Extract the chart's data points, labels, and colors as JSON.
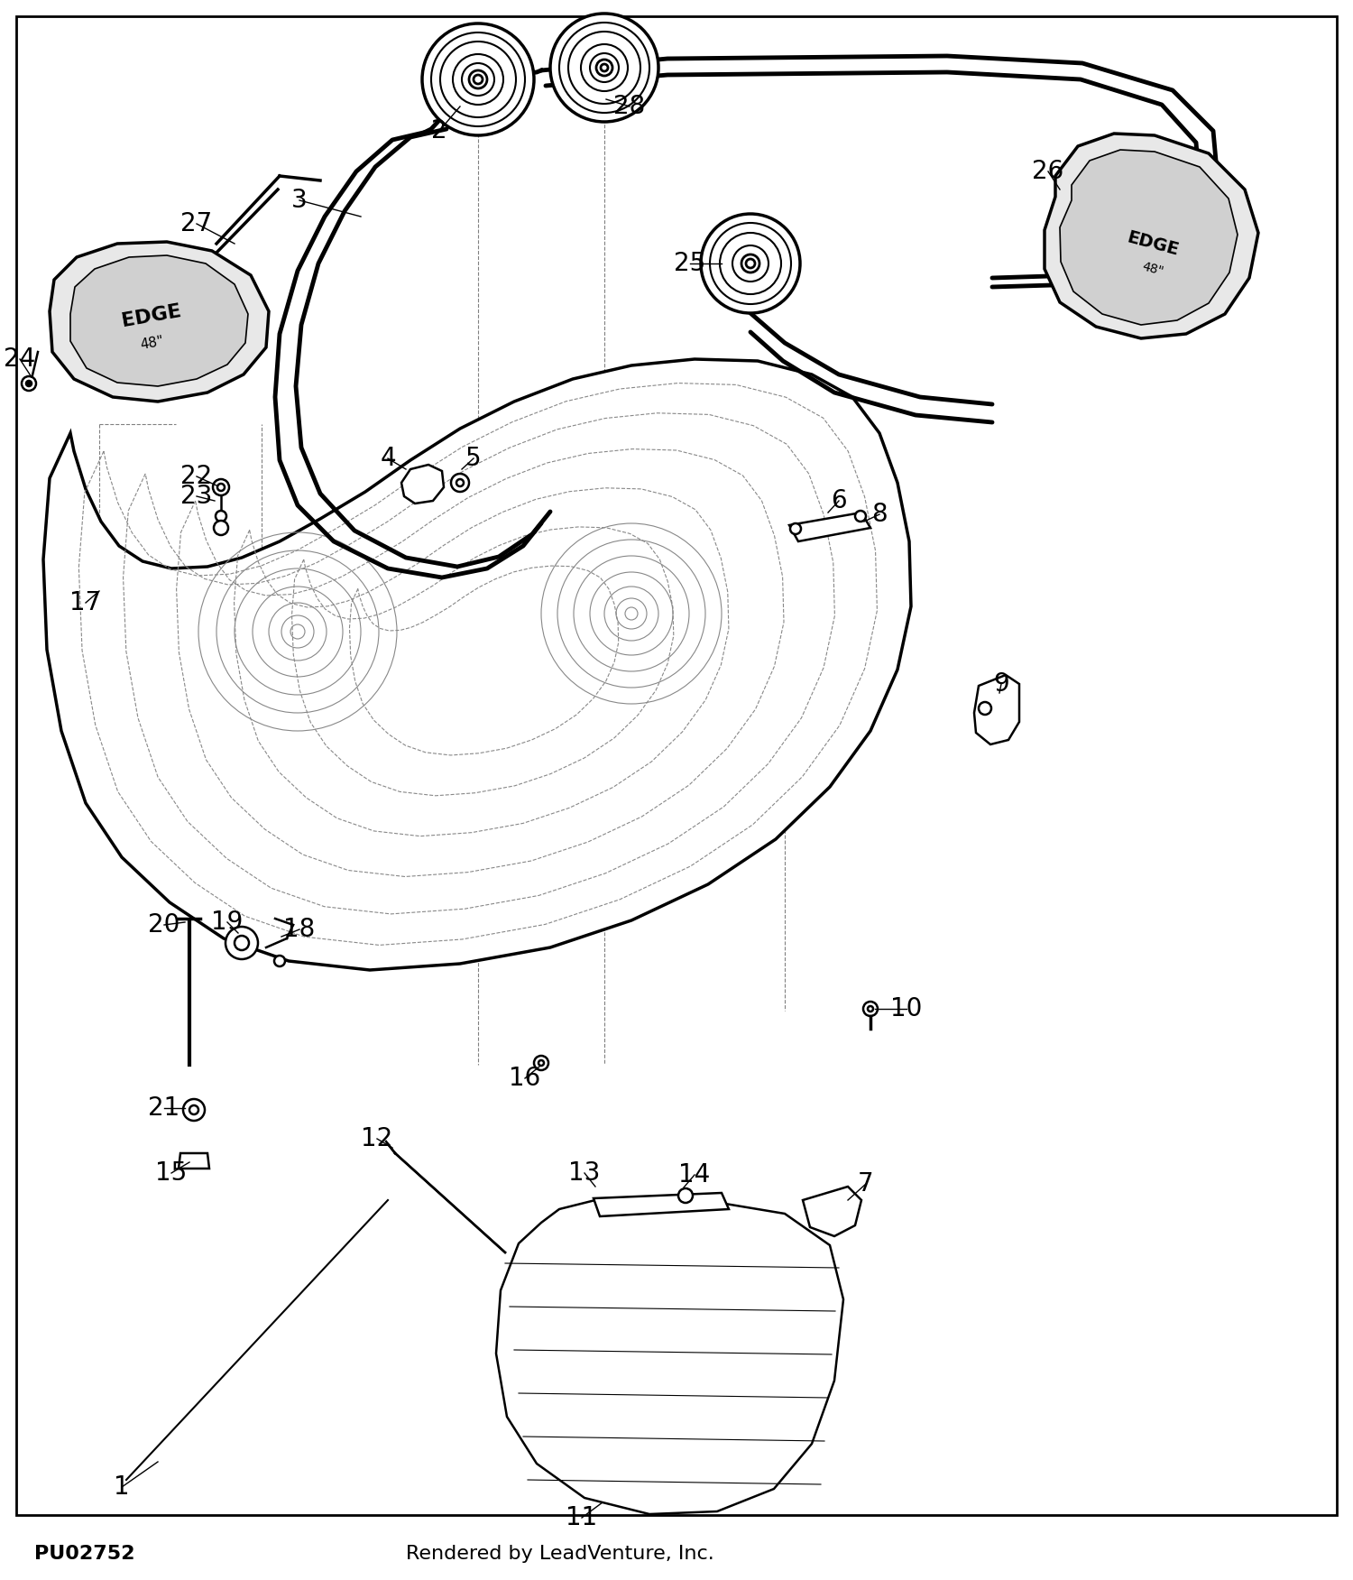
{
  "background_color": "#ffffff",
  "border_color": "#000000",
  "title_bottom_left": "PU02752",
  "title_bottom_right": "Rendered by LeadVenture, Inc.",
  "figsize": [
    15.0,
    17.51
  ],
  "dpi": 100
}
